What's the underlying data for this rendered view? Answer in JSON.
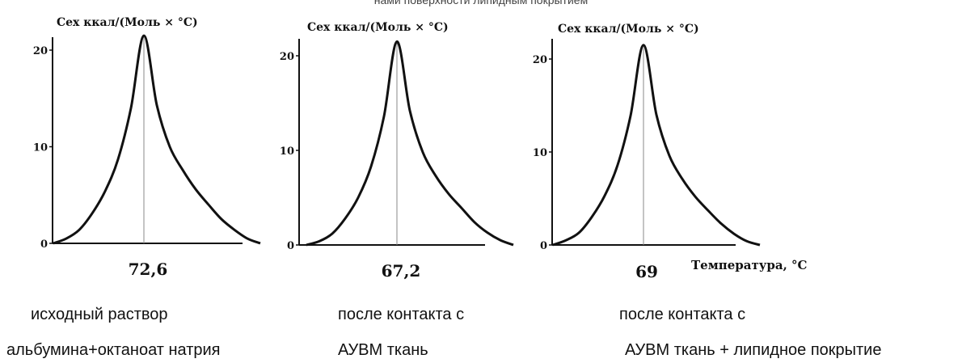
{
  "header_fragment": "нами  поверхности  липидным  покрытием",
  "chart_data": [
    {
      "type": "line",
      "ylabel": "Cex ккал/(Моль × °С)",
      "yticks": [
        0,
        10,
        20
      ],
      "ylim": [
        0,
        24
      ],
      "peak_label": "72,6",
      "peak_y": 21.5,
      "xlabel": "",
      "x": [
        -7,
        -6,
        -5,
        -4,
        -3,
        -2,
        -1,
        0,
        1,
        2,
        3,
        4,
        5,
        6,
        7,
        8,
        9
      ],
      "values": [
        0,
        0.5,
        1.4,
        3.1,
        5.4,
        8.7,
        14.0,
        21.5,
        14.3,
        10.0,
        7.6,
        5.6,
        4.0,
        2.5,
        1.4,
        0.5,
        0
      ],
      "caption_lines": [
        "исходный  раствор",
        "альбумина+октаноат  натрия"
      ]
    },
    {
      "type": "line",
      "ylabel": "Cex ккал/(Моль × °С)",
      "yticks": [
        0,
        10,
        20
      ],
      "ylim": [
        0,
        24
      ],
      "peak_label": "67,2",
      "peak_y": 21.5,
      "xlabel": "",
      "x": [
        -7,
        -6,
        -5,
        -4,
        -3,
        -2,
        -1,
        0,
        1,
        2,
        3,
        4,
        5,
        6,
        7,
        8,
        9
      ],
      "values": [
        0,
        0.4,
        1.2,
        2.8,
        5.0,
        8.3,
        13.6,
        21.5,
        14.2,
        9.8,
        7.3,
        5.4,
        3.9,
        2.4,
        1.3,
        0.5,
        0
      ],
      "caption_lines": [
        "после  контакта  с",
        "АУВМ  ткань"
      ]
    },
    {
      "type": "line",
      "ylabel": "Cex ккал/(Моль × °С)",
      "yticks": [
        0,
        10,
        20
      ],
      "ylim": [
        0,
        24
      ],
      "peak_label": "69",
      "peak_y": 21.5,
      "xlabel": "Температура, °С",
      "x": [
        -7,
        -6,
        -5,
        -4,
        -3,
        -2,
        -1,
        0,
        1,
        2,
        3,
        4,
        5,
        6,
        7,
        8,
        9
      ],
      "values": [
        0,
        0.5,
        1.3,
        3.0,
        5.3,
        8.6,
        13.9,
        21.5,
        14.0,
        9.6,
        7.1,
        5.2,
        3.7,
        2.3,
        1.2,
        0.4,
        0
      ],
      "caption_lines": [
        "после  контакта  с",
        "АУВМ ткань + липидное  покрытие"
      ]
    }
  ],
  "colors": {
    "curve": "#111111",
    "axis": "#111111",
    "peak_line": "#888888"
  }
}
